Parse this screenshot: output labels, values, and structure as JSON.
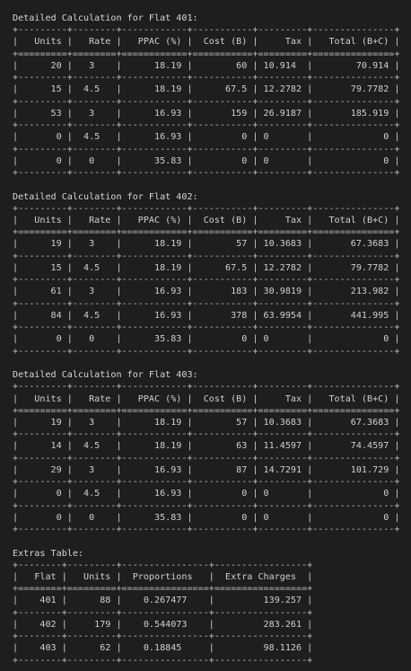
{
  "theme": {
    "background": "#1e1e1e",
    "foreground": "#d0d0d0"
  },
  "flat_tables": [
    {
      "title": "Detailed Calculation for Flat 401:",
      "columns": [
        "Units",
        "Rate",
        "PPAC (%)",
        "Cost (B)",
        "Tax",
        "Total (B+C)"
      ],
      "rows": [
        [
          "20",
          "3",
          "18.19",
          "60",
          "10.914",
          "70.914"
        ],
        [
          "15",
          "4.5",
          "18.19",
          "67.5",
          "12.2782",
          "79.7782"
        ],
        [
          "53",
          "3",
          "16.93",
          "159",
          "26.9187",
          "185.919"
        ],
        [
          "0",
          "4.5",
          "16.93",
          "0",
          "0",
          "0"
        ],
        [
          "0",
          "0",
          "35.83",
          "0",
          "0",
          "0"
        ]
      ]
    },
    {
      "title": "Detailed Calculation for Flat 402:",
      "columns": [
        "Units",
        "Rate",
        "PPAC (%)",
        "Cost (B)",
        "Tax",
        "Total (B+C)"
      ],
      "rows": [
        [
          "19",
          "3",
          "18.19",
          "57",
          "10.3683",
          "67.3683"
        ],
        [
          "15",
          "4.5",
          "18.19",
          "67.5",
          "12.2782",
          "79.7782"
        ],
        [
          "61",
          "3",
          "16.93",
          "183",
          "30.9819",
          "213.982"
        ],
        [
          "84",
          "4.5",
          "16.93",
          "378",
          "63.9954",
          "441.995"
        ],
        [
          "0",
          "0",
          "35.83",
          "0",
          "0",
          "0"
        ]
      ]
    },
    {
      "title": "Detailed Calculation for Flat 403:",
      "columns": [
        "Units",
        "Rate",
        "PPAC (%)",
        "Cost (B)",
        "Tax",
        "Total (B+C)"
      ],
      "rows": [
        [
          "19",
          "3",
          "18.19",
          "57",
          "10.3683",
          "67.3683"
        ],
        [
          "14",
          "4.5",
          "18.19",
          "63",
          "11.4597",
          "74.4597"
        ],
        [
          "29",
          "3",
          "16.93",
          "87",
          "14.7291",
          "101.729"
        ],
        [
          "0",
          "4.5",
          "16.93",
          "0",
          "0",
          "0"
        ],
        [
          "0",
          "0",
          "35.83",
          "0",
          "0",
          "0"
        ]
      ]
    }
  ],
  "extras_table": {
    "title": "Extras Table:",
    "columns": [
      "Flat",
      "Units",
      "Proportions",
      "Extra Charges"
    ],
    "rows": [
      [
        "401",
        "88",
        "0.267477",
        "139.257"
      ],
      [
        "402",
        "179",
        "0.544073",
        "283.261"
      ],
      [
        "403",
        "62",
        "0.18845",
        "98.1126"
      ]
    ]
  }
}
